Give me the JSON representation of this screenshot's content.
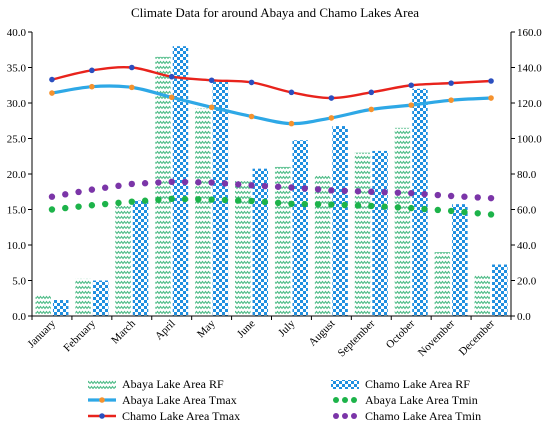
{
  "chart_data": {
    "type": "bar",
    "title": "Climate Data for around Abaya and Chamo Lakes Area",
    "categories": [
      "January",
      "February",
      "March",
      "April",
      "May",
      "June",
      "July",
      "August",
      "September",
      "October",
      "November",
      "December"
    ],
    "y_left": {
      "min": 0,
      "max": 40,
      "step": 5,
      "ticks": [
        "0.0",
        "5.0",
        "10.0",
        "15.0",
        "20.0",
        "25.0",
        "30.0",
        "35.0",
        "40.0"
      ]
    },
    "y_right": {
      "min": 0,
      "max": 160,
      "step": 20,
      "ticks": [
        "0.0",
        "20.0",
        "40.0",
        "60.0",
        "80.0",
        "100.0",
        "120.0",
        "140.0",
        "160.0"
      ]
    },
    "bar_series": [
      {
        "name": "Abaya Lake Area RF",
        "axis": "right",
        "color": "#5cbf8f",
        "values": [
          12,
          21,
          62,
          146,
          117,
          76,
          84,
          79,
          92,
          106,
          36,
          23
        ]
      },
      {
        "name": "Chamo Lake Area RF",
        "axis": "right",
        "color": "#1f8fe0",
        "values": [
          9,
          20,
          65,
          152,
          132,
          83,
          99,
          107,
          93,
          128,
          63,
          29
        ]
      }
    ],
    "line_series": [
      {
        "name": "Abaya Lake Area Tmax",
        "axis": "left",
        "color": "#2ea8e6",
        "marker": "#f5922e",
        "values": [
          31.4,
          32.3,
          32.2,
          30.8,
          29.4,
          28.1,
          27.1,
          27.9,
          29.1,
          29.7,
          30.4,
          30.7
        ]
      },
      {
        "name": "Chamo Lake Area Tmax",
        "axis": "left",
        "color": "#e8231c",
        "marker": "#2b4fbf",
        "values": [
          33.3,
          34.6,
          35.0,
          33.7,
          33.2,
          32.9,
          31.5,
          30.7,
          31.5,
          32.5,
          32.8,
          33.1
        ]
      },
      {
        "name": "Abaya Lake Area Tmin",
        "axis": "left",
        "color": "#1db34a",
        "dotted": true,
        "values": [
          15.0,
          15.6,
          16.1,
          16.5,
          16.4,
          16.2,
          15.8,
          15.7,
          15.5,
          15.2,
          14.8,
          14.3
        ]
      },
      {
        "name": "Chamo Lake Area Tmin",
        "axis": "left",
        "color": "#7b35a8",
        "dotted": true,
        "values": [
          16.8,
          17.8,
          18.6,
          18.9,
          18.8,
          18.4,
          18.1,
          17.7,
          17.5,
          17.3,
          16.9,
          16.6
        ]
      }
    ],
    "legend": [
      {
        "label": "Abaya Lake Area RF",
        "kind": "bar-green"
      },
      {
        "label": "Chamo Lake Area RF",
        "kind": "bar-blue"
      },
      {
        "label": "Abaya Lake Area Tmax",
        "kind": "line-blue"
      },
      {
        "label": "Abaya Lake Area Tmin",
        "kind": "dots-green"
      },
      {
        "label": "Chamo Lake Area Tmax",
        "kind": "line-red"
      },
      {
        "label": "Chamo Lake Area Tmin",
        "kind": "dots-purple"
      }
    ],
    "legend_position": "bottom",
    "grid": false
  }
}
